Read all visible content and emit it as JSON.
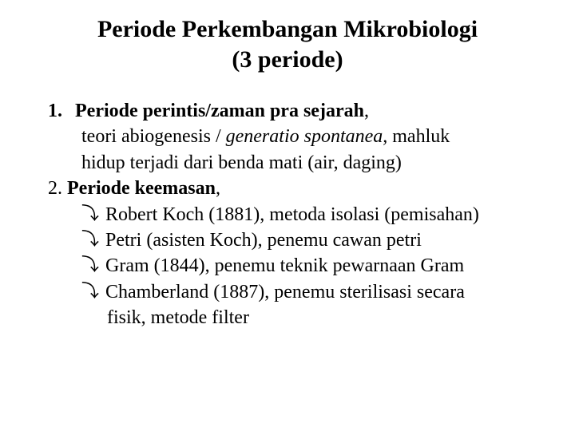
{
  "title_l1": "Periode Perkembangan Mikrobiologi",
  "title_l2": "(3 periode)",
  "item1_num": "1.",
  "item1_head": "Periode perintis/zaman pra sejarah",
  "item1_comma": ",",
  "item1_line2a": "teori abiogenesis / ",
  "item1_line2b": "generatio spontanea,",
  "item1_line2c": " mahluk",
  "item1_line3": "hidup terjadi dari benda mati (air, daging)",
  "item2_num": "2. ",
  "item2_head": "Periode keemasan",
  "item2_comma": ",",
  "bullet_glyph": "⤵",
  "b1": "Robert Koch (1881), metoda isolasi (pemisahan)",
  "b2": "Petri (asisten Koch), penemu cawan petri",
  "b3": "Gram (1844), penemu teknik pewarnaan Gram",
  "b4a": "Chamberland (1887), penemu sterilisasi secara",
  "b4b": "fisik, metode filter"
}
